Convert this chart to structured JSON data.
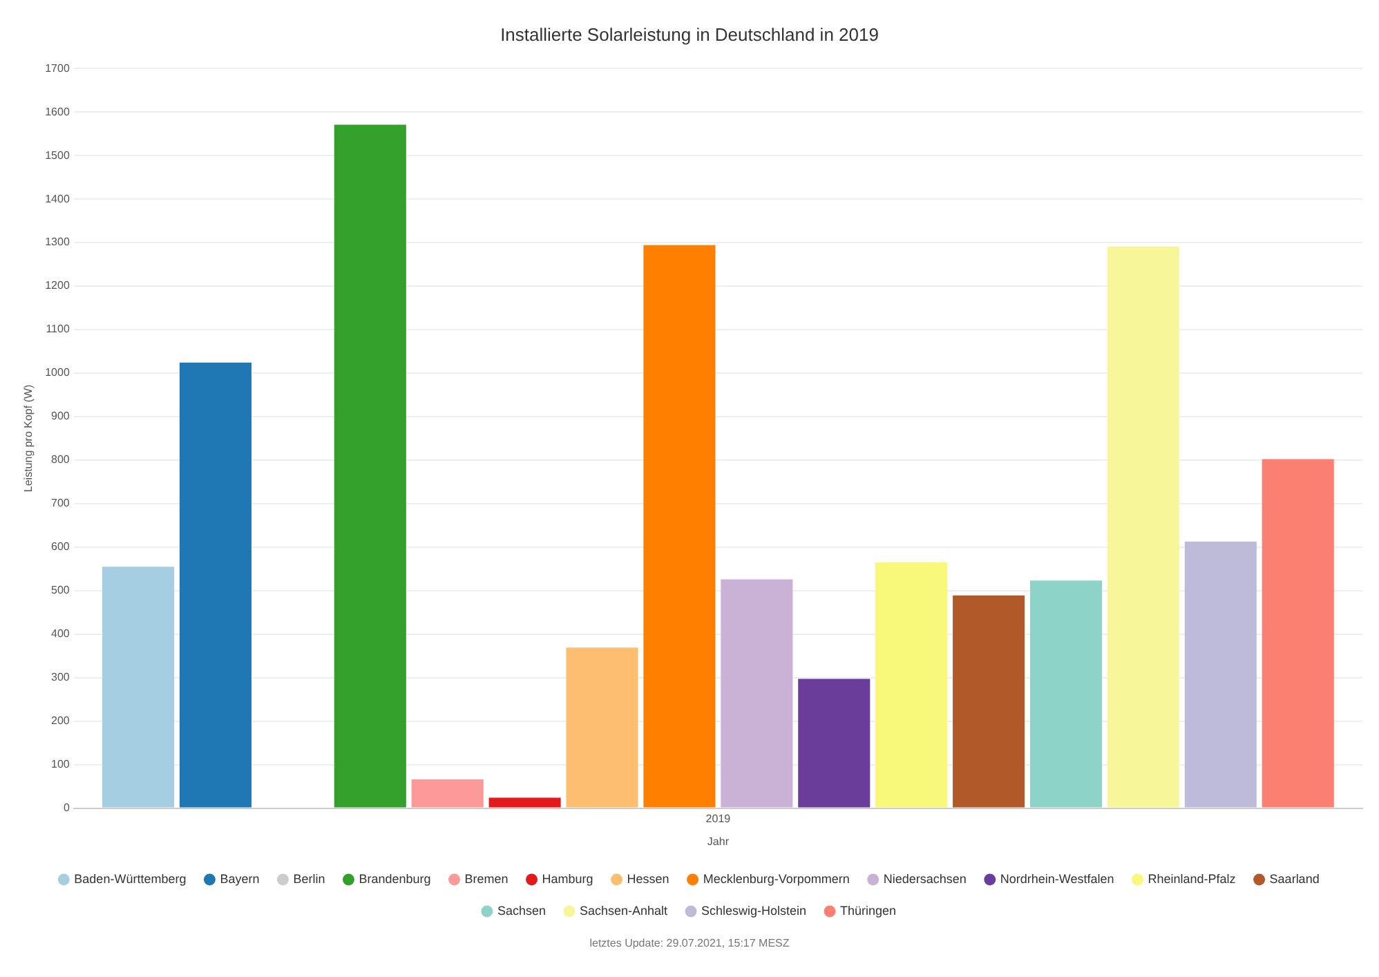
{
  "chart_data": {
    "type": "bar",
    "title": "Installierte Solarleistung in Deutschland in 2019",
    "xlabel": "Jahr",
    "ylabel": "Leistung pro Kopf (W)",
    "categories": [
      "2019"
    ],
    "series": [
      {
        "name": "Baden-Württemberg",
        "color": "#a6cee3",
        "values": [
          555
        ]
      },
      {
        "name": "Bayern",
        "color": "#1f78b4",
        "values": [
          1024
        ]
      },
      {
        "name": "Berlin",
        "color": "#cccccc",
        "values": [
          null
        ]
      },
      {
        "name": "Brandenburg",
        "color": "#33a02c",
        "values": [
          1571
        ]
      },
      {
        "name": "Bremen",
        "color": "#fb9a99",
        "values": [
          66
        ]
      },
      {
        "name": "Hamburg",
        "color": "#e31a1c",
        "values": [
          24
        ]
      },
      {
        "name": "Hessen",
        "color": "#fdbf6f",
        "values": [
          369
        ]
      },
      {
        "name": "Mecklenburg-Vorpommern",
        "color": "#ff7f00",
        "values": [
          1294
        ]
      },
      {
        "name": "Niedersachsen",
        "color": "#cab2d6",
        "values": [
          526
        ]
      },
      {
        "name": "Nordrhein-Westfalen",
        "color": "#6a3d9a",
        "values": [
          297
        ]
      },
      {
        "name": "Rheinland-Pfalz",
        "color": "#f8f97b",
        "values": [
          565
        ]
      },
      {
        "name": "Saarland",
        "color": "#b15928",
        "values": [
          489
        ]
      },
      {
        "name": "Sachsen",
        "color": "#8dd3c7",
        "values": [
          523
        ]
      },
      {
        "name": "Sachsen-Anhalt",
        "color": "#f7f79a",
        "values": [
          1291
        ]
      },
      {
        "name": "Schleswig-Holstein",
        "color": "#bebada",
        "values": [
          613
        ]
      },
      {
        "name": "Thüringen",
        "color": "#fb8072",
        "values": [
          802
        ]
      }
    ],
    "ylim": [
      0,
      1700
    ],
    "yticks": [
      0,
      100,
      200,
      300,
      400,
      500,
      600,
      700,
      800,
      900,
      1000,
      1100,
      1200,
      1300,
      1400,
      1500,
      1600,
      1700
    ],
    "grid": "y",
    "legend": "bottom",
    "annotations": [
      "letztes Update: 29.07.2021, 15:17 MESZ"
    ]
  }
}
